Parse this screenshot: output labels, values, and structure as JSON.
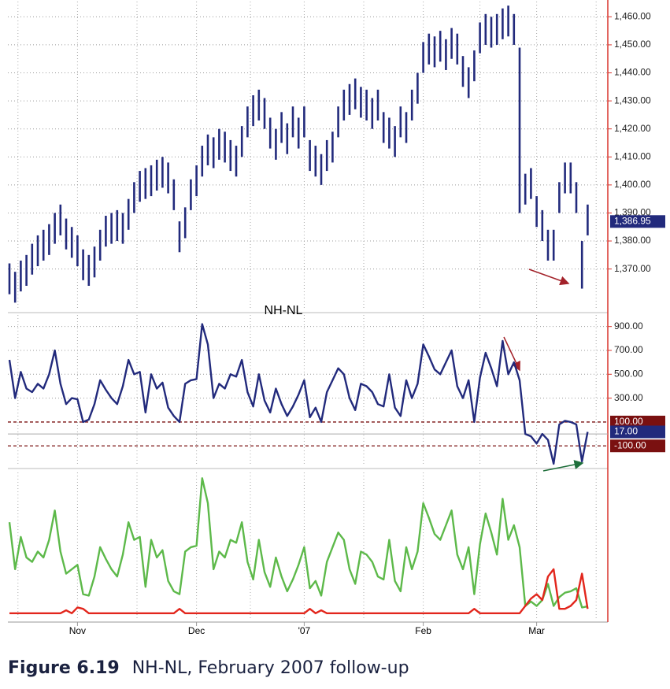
{
  "chart_data": [
    {
      "type": "ohlc",
      "color": "#222a7c",
      "high": [
        1372,
        1369,
        1373,
        1375,
        1379,
        1382,
        1384,
        1386,
        1390,
        1393,
        1388,
        1385,
        1382,
        1377,
        1375,
        1378,
        1384,
        1389,
        1390,
        1391,
        1390,
        1395,
        1401,
        1405,
        1406,
        1407,
        1409,
        1410,
        1408,
        1402,
        1387,
        1392,
        1402,
        1407,
        1414,
        1418,
        1417,
        1420,
        1419,
        1416,
        1414,
        1421,
        1428,
        1432,
        1434,
        1431,
        1424,
        1420,
        1426,
        1422,
        1428,
        1424,
        1428,
        1416,
        1414,
        1411,
        1416,
        1419,
        1428,
        1434,
        1436,
        1438,
        1435,
        1434,
        1431,
        1434,
        1426,
        1424,
        1421,
        1428,
        1426,
        1434,
        1440,
        1451,
        1454,
        1453,
        1455,
        1452,
        1456,
        1454,
        1446,
        1442,
        1448,
        1458,
        1461,
        1460,
        1461,
        1463,
        1464,
        1461,
        1449,
        1404,
        1406,
        1396,
        1391,
        1384,
        1384,
        1401,
        1408,
        1408,
        1401,
        1380,
        1393
      ],
      "low": [
        1361,
        1358,
        1362,
        1364,
        1368,
        1371,
        1373,
        1375,
        1379,
        1382,
        1377,
        1374,
        1371,
        1366,
        1364,
        1367,
        1373,
        1378,
        1379,
        1380,
        1379,
        1384,
        1390,
        1394,
        1395,
        1396,
        1398,
        1399,
        1397,
        1391,
        1376,
        1381,
        1391,
        1396,
        1403,
        1407,
        1406,
        1409,
        1408,
        1405,
        1403,
        1410,
        1417,
        1421,
        1423,
        1420,
        1413,
        1409,
        1415,
        1411,
        1417,
        1413,
        1417,
        1405,
        1403,
        1400,
        1405,
        1408,
        1417,
        1423,
        1425,
        1427,
        1424,
        1423,
        1420,
        1423,
        1415,
        1413,
        1410,
        1417,
        1415,
        1423,
        1429,
        1440,
        1443,
        1442,
        1444,
        1441,
        1445,
        1443,
        1435,
        1431,
        1437,
        1447,
        1450,
        1449,
        1450,
        1452,
        1453,
        1450,
        1390,
        1393,
        1395,
        1385,
        1380,
        1373,
        1373,
        1390,
        1397,
        1397,
        1390,
        1363,
        1382
      ],
      "ylim": [
        1355,
        1466
      ],
      "yticks": [
        {
          "value": 1370,
          "label": "1,370.00"
        },
        {
          "value": 1380,
          "label": "1,380.00"
        },
        {
          "value": 1390,
          "label": "1,390.00"
        },
        {
          "value": 1400,
          "label": "1,400.00"
        },
        {
          "value": 1410,
          "label": "1,410.00"
        },
        {
          "value": 1420,
          "label": "1,420.00"
        },
        {
          "value": 1430,
          "label": "1,430.00"
        },
        {
          "value": 1440,
          "label": "1,440.00"
        },
        {
          "value": 1450,
          "label": "1,450.00"
        },
        {
          "value": 1460,
          "label": "1,460.00"
        }
      ],
      "current": {
        "value": 1386.95,
        "label": "1,386.95"
      },
      "grid": true
    },
    {
      "type": "line",
      "title": "NH-NL",
      "color": "#222a7c",
      "values": [
        620,
        300,
        520,
        380,
        350,
        420,
        380,
        500,
        700,
        420,
        250,
        300,
        290,
        100,
        120,
        250,
        450,
        370,
        300,
        250,
        400,
        620,
        500,
        520,
        180,
        500,
        380,
        430,
        220,
        150,
        100,
        420,
        450,
        460,
        920,
        750,
        300,
        420,
        380,
        500,
        480,
        620,
        350,
        230,
        500,
        280,
        180,
        380,
        250,
        150,
        230,
        330,
        450,
        140,
        220,
        100,
        350,
        450,
        550,
        500,
        300,
        200,
        420,
        400,
        350,
        250,
        230,
        500,
        220,
        150,
        450,
        300,
        420,
        750,
        650,
        540,
        500,
        600,
        700,
        400,
        300,
        450,
        100,
        470,
        680,
        550,
        400,
        780,
        500,
        600,
        450,
        0,
        -20,
        -80,
        0,
        -50,
        -250,
        80,
        110,
        100,
        80,
        -230,
        17
      ],
      "ylim": [
        -270,
        1010
      ],
      "yticks": [
        {
          "value": 300,
          "label": "300.00"
        },
        {
          "value": 500,
          "label": "500.00"
        },
        {
          "value": 700,
          "label": "700.00"
        },
        {
          "value": 900,
          "label": "900.00"
        }
      ],
      "ref_lines": [
        {
          "value": 100,
          "label": "100.00"
        },
        {
          "value": -100,
          "label": "-100.00"
        }
      ],
      "ref_color": "#7a1010",
      "zero_line": true,
      "current": {
        "value": 17,
        "label": "17.00"
      },
      "grid": true
    },
    {
      "type": "line",
      "categories": [
        null,
        null,
        null,
        null,
        null,
        null,
        null,
        null,
        null,
        null,
        null,
        null,
        "Nov",
        null,
        null,
        null,
        null,
        null,
        null,
        null,
        null,
        null,
        null,
        null,
        null,
        null,
        null,
        null,
        null,
        null,
        null,
        null,
        null,
        "Dec",
        null,
        null,
        null,
        null,
        null,
        null,
        null,
        null,
        null,
        null,
        null,
        null,
        null,
        null,
        null,
        null,
        null,
        null,
        "'07",
        null,
        null,
        null,
        null,
        null,
        null,
        null,
        null,
        null,
        null,
        null,
        null,
        null,
        null,
        null,
        null,
        null,
        null,
        null,
        null,
        "Feb",
        null,
        null,
        null,
        null,
        null,
        null,
        null,
        null,
        null,
        null,
        null,
        null,
        null,
        null,
        null,
        null,
        null,
        null,
        null,
        "Mar",
        null,
        null,
        null,
        null,
        null,
        null,
        null,
        null,
        null
      ],
      "series": [
        {
          "color": "#5db94a",
          "values": [
            650,
            330,
            550,
            410,
            380,
            450,
            410,
            530,
            730,
            450,
            300,
            330,
            360,
            160,
            150,
            280,
            480,
            400,
            330,
            280,
            430,
            650,
            530,
            550,
            210,
            530,
            410,
            460,
            250,
            180,
            160,
            450,
            480,
            490,
            950,
            780,
            330,
            450,
            410,
            530,
            510,
            650,
            380,
            260,
            530,
            310,
            210,
            410,
            280,
            180,
            260,
            360,
            480,
            200,
            250,
            150,
            380,
            480,
            580,
            530,
            330,
            230,
            450,
            430,
            380,
            280,
            260,
            530,
            250,
            180,
            480,
            330,
            450,
            780,
            680,
            570,
            530,
            630,
            730,
            430,
            330,
            480,
            160,
            500,
            710,
            580,
            430,
            810,
            530,
            630,
            480,
            80,
            110,
            80,
            120,
            230,
            80,
            140,
            170,
            180,
            200,
            70,
            77
          ]
        },
        {
          "color": "#e2261c",
          "values": [
            30,
            30,
            30,
            30,
            30,
            30,
            30,
            30,
            30,
            30,
            50,
            30,
            70,
            60,
            30,
            30,
            30,
            30,
            30,
            30,
            30,
            30,
            30,
            30,
            30,
            30,
            30,
            30,
            30,
            30,
            60,
            30,
            30,
            30,
            30,
            30,
            30,
            30,
            30,
            30,
            30,
            30,
            30,
            30,
            30,
            30,
            30,
            30,
            30,
            30,
            30,
            30,
            30,
            60,
            30,
            50,
            30,
            30,
            30,
            30,
            30,
            30,
            30,
            30,
            30,
            30,
            30,
            30,
            30,
            30,
            30,
            30,
            30,
            30,
            30,
            30,
            30,
            30,
            30,
            30,
            30,
            30,
            60,
            30,
            30,
            30,
            30,
            30,
            30,
            30,
            30,
            80,
            130,
            160,
            120,
            280,
            330,
            60,
            60,
            80,
            120,
            300,
            60
          ]
        }
      ],
      "ylim": [
        -30,
        1000
      ]
    }
  ],
  "caption": {
    "number": "Figure 6.19",
    "text": "NH-NL, February 2007 follow-up"
  }
}
